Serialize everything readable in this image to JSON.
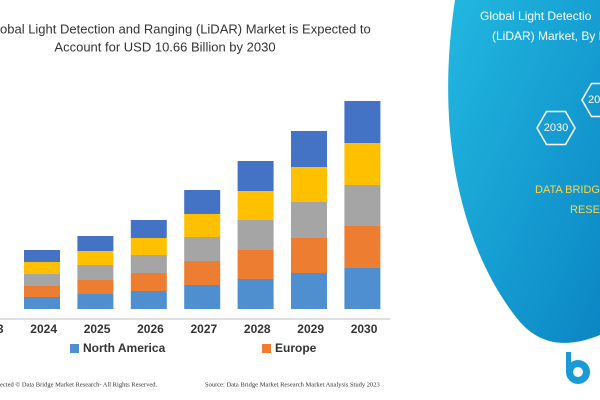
{
  "chart_data": {
    "type": "stacked_bar",
    "title_lines": [
      "obal Light Detection and Ranging (LiDAR) Market is Expected to",
      "Account for USD 10.66 Billion by 2030"
    ],
    "categories": [
      "3",
      "2024",
      "2025",
      "2026",
      "2027",
      "2028",
      "2029",
      "2030"
    ],
    "series": [
      {
        "name": "North America",
        "color": "#4f8fd0",
        "values": [
          null,
          12,
          15,
          18,
          24,
          30,
          36,
          41
        ]
      },
      {
        "name": "Europe",
        "color": "#ed7d31",
        "values": [
          null,
          11,
          14,
          18,
          24,
          29,
          35,
          42
        ]
      },
      {
        "color": "#a5a5a5",
        "values": [
          null,
          12,
          15,
          18,
          24,
          30,
          36,
          41
        ]
      },
      {
        "color": "#ffc000",
        "values": [
          null,
          12,
          14,
          17,
          23,
          29,
          35,
          42
        ]
      },
      {
        "color": "#4472c4",
        "values": [
          null,
          12,
          15,
          18,
          24,
          30,
          36,
          42
        ]
      }
    ],
    "ylim": [
      0,
      208
    ]
  },
  "panel": {
    "title_lines": [
      "Global Light Detectio",
      "(LiDAR) Market, By R"
    ],
    "hex_labels": [
      "2030",
      "20"
    ],
    "brand_lines": [
      "DATA BRIDGE",
      "RESE"
    ]
  },
  "footer": {
    "copyright": "ected © Data Bridge Market Research- All Rights Reserved.",
    "source": "Source: Data Bridge Market Research Market Analysis Study 2023"
  }
}
